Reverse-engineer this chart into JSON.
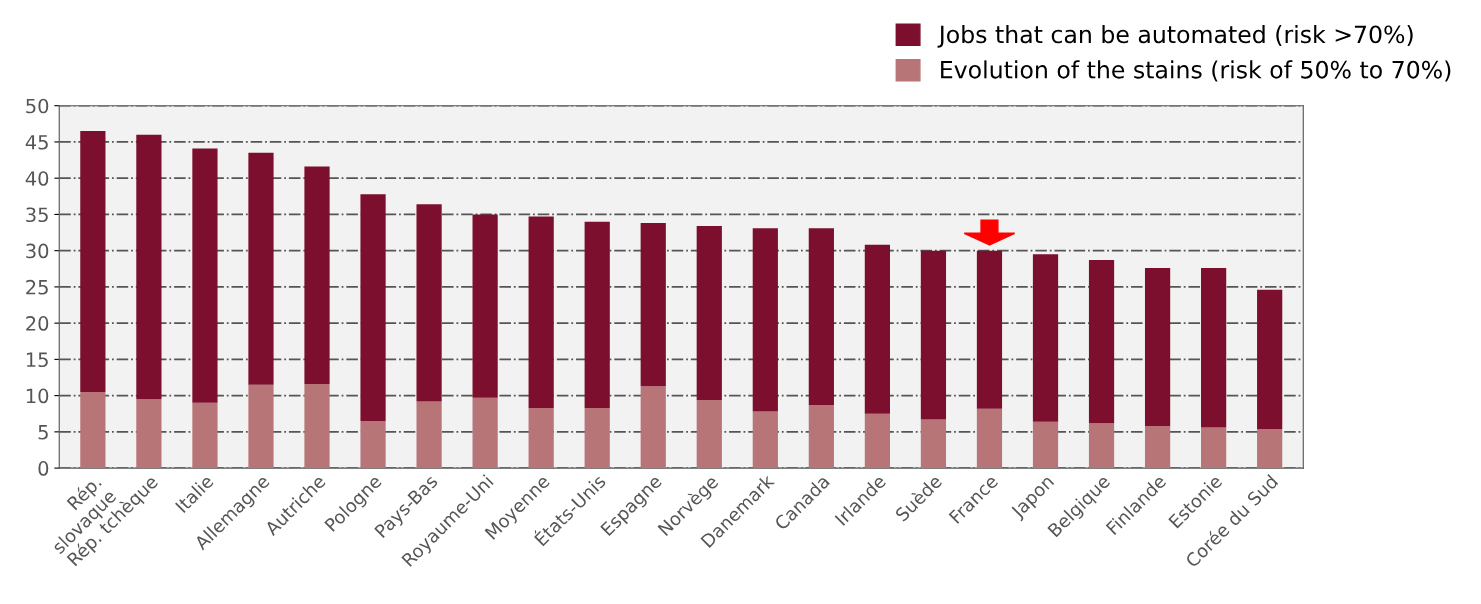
{
  "chart_data": {
    "type": "bar",
    "stacked": true,
    "categories": [
      "Rép.\nslovaque",
      "Rép. tchèque",
      "Italie",
      "Allemagne",
      "Autriche",
      "Pologne",
      "Pays-Bas",
      "Royaume-Uni",
      "Moyenne",
      "États-Unis",
      "Espagne",
      "Norvège",
      "Danemark",
      "Canada",
      "Irlande",
      "Suède",
      "France",
      "Japon",
      "Belgique",
      "Finlande",
      "Estonie",
      "Corée du Sud"
    ],
    "series": [
      {
        "name": "Evolution of the stains (risk of 50% to 70%)",
        "color": "#b87578",
        "values": [
          10.5,
          9.5,
          9.0,
          11.5,
          11.6,
          6.5,
          9.2,
          9.7,
          8.3,
          8.3,
          11.3,
          9.4,
          7.8,
          8.7,
          7.5,
          6.7,
          8.2,
          6.4,
          6.2,
          5.8,
          5.6,
          5.4
        ]
      },
      {
        "name": "Jobs that can be automated (risk >70%)",
        "color": "#7d0f2e",
        "values": [
          36.0,
          36.5,
          35.1,
          32.0,
          30.0,
          31.3,
          27.2,
          25.3,
          26.4,
          25.7,
          22.5,
          24.0,
          25.3,
          24.4,
          23.3,
          23.3,
          21.8,
          23.1,
          22.5,
          21.8,
          22.0,
          19.2
        ]
      }
    ],
    "ylim": [
      0,
      50
    ],
    "yticks": [
      0,
      5,
      10,
      15,
      20,
      25,
      30,
      35,
      40,
      45,
      50
    ],
    "grid": "y",
    "legend": "top right"
  }
}
